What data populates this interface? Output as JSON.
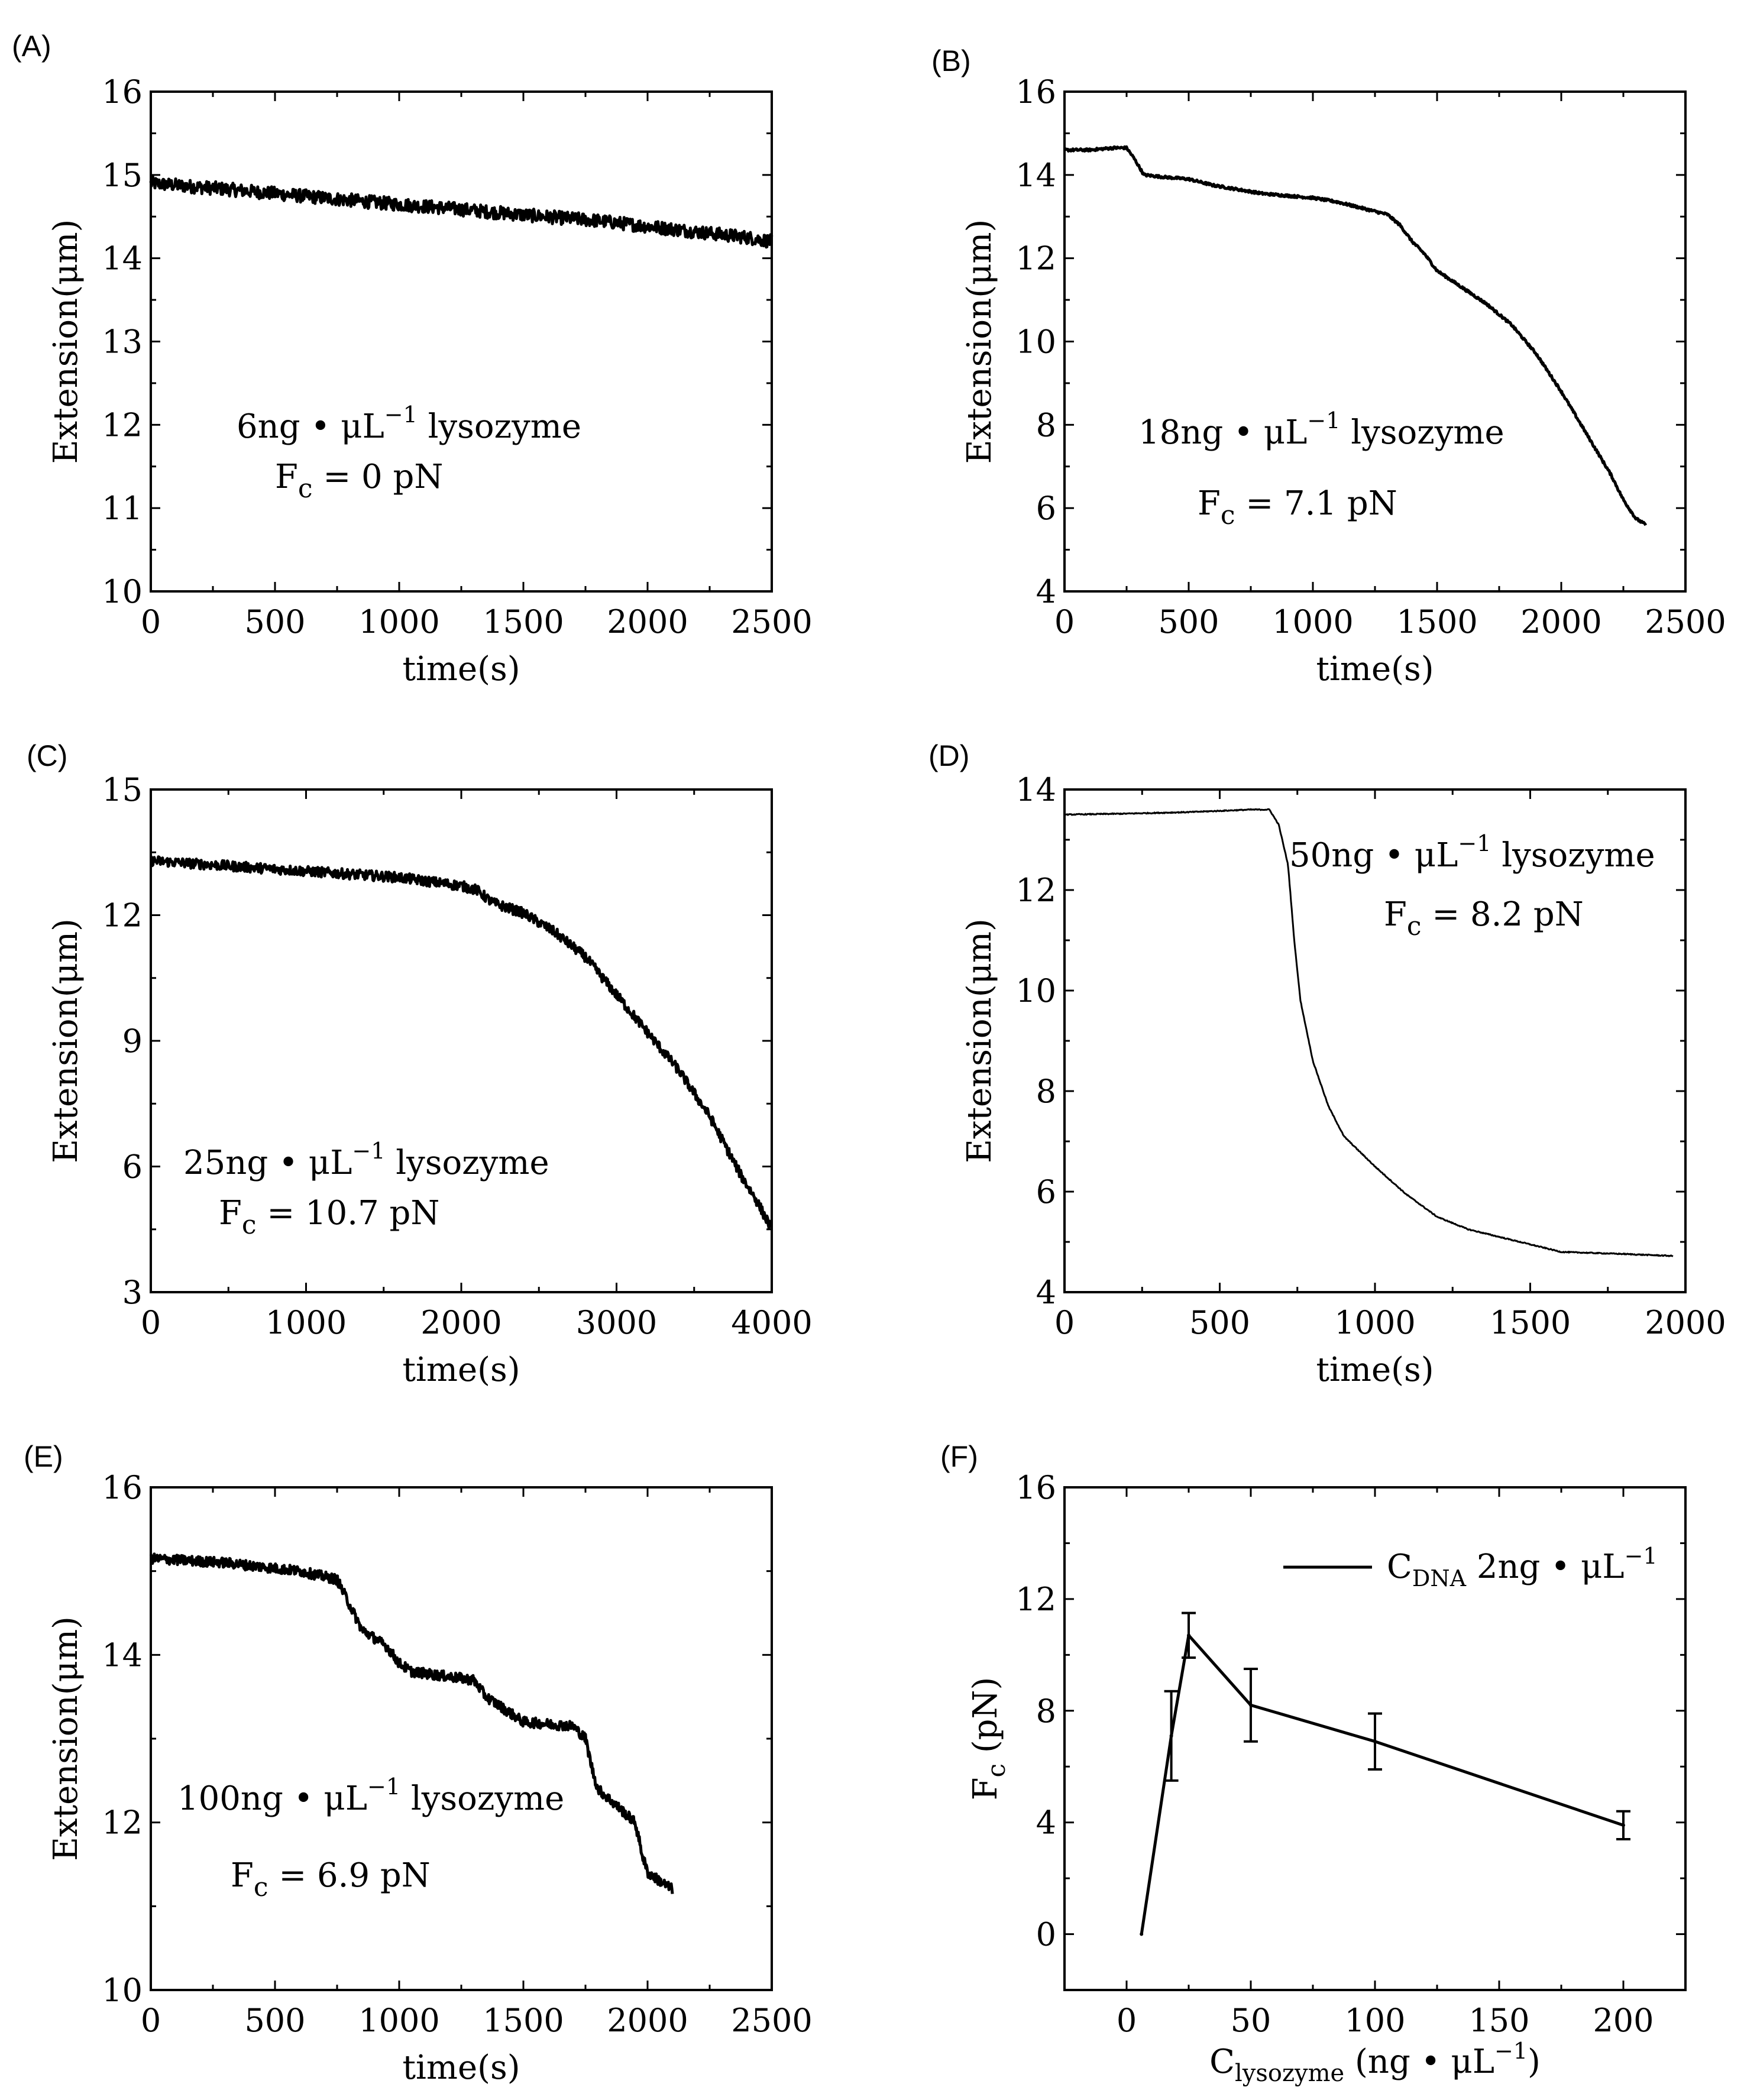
{
  "chart_data": [
    {
      "panel": "(A)",
      "type": "line",
      "title": "",
      "xlabel": "time(s)",
      "ylabel": "Extension(μm)",
      "xlim": [
        0,
        2500
      ],
      "ylim": [
        10,
        16
      ],
      "xticks": [
        0,
        500,
        1000,
        1500,
        2000,
        2500
      ],
      "yticks": [
        10,
        11,
        12,
        13,
        14,
        15,
        16
      ],
      "annotation_line1": "6ng • μL",
      "annotation_sup": "−1",
      "annotation_line1_tail": " lysozyme",
      "annotation_fc_main": "F",
      "annotation_fc_sub": "c",
      "annotation_fc_value": " = 0 pN",
      "noise": 0.08,
      "series": [
        {
          "name": "extension",
          "x": [
            0,
            300,
            600,
            900,
            1200,
            1500,
            1800,
            2100,
            2400,
            2500
          ],
          "y": [
            14.9,
            14.83,
            14.75,
            14.67,
            14.6,
            14.52,
            14.45,
            14.35,
            14.25,
            14.2
          ]
        }
      ]
    },
    {
      "panel": "(B)",
      "type": "line",
      "title": "",
      "xlabel": "time(s)",
      "ylabel": "Extension(μm)",
      "xlim": [
        0,
        2500
      ],
      "ylim": [
        4,
        16
      ],
      "xticks": [
        0,
        500,
        1000,
        1500,
        2000,
        2500
      ],
      "yticks": [
        4,
        6,
        8,
        10,
        12,
        14,
        16
      ],
      "annotation_line1": "18ng • μL",
      "annotation_sup": "−1",
      "annotation_line1_tail": " lysozyme",
      "annotation_fc_main": "F",
      "annotation_fc_sub": "c",
      "annotation_fc_value": " = 7.1 pN",
      "noise": 0.03,
      "series": [
        {
          "name": "extension",
          "x": [
            0,
            100,
            200,
            250,
            280,
            320,
            400,
            500,
            600,
            700,
            800,
            900,
            1000,
            1100,
            1200,
            1300,
            1350,
            1400,
            1450,
            1500,
            1550,
            1600,
            1700,
            1800,
            1900,
            2000,
            2100,
            2200,
            2250,
            2300,
            2340
          ],
          "y": [
            14.6,
            14.6,
            14.65,
            14.65,
            14.4,
            14.0,
            13.95,
            13.9,
            13.75,
            13.65,
            13.55,
            13.5,
            13.45,
            13.35,
            13.2,
            13.05,
            12.8,
            12.4,
            12.1,
            11.7,
            11.5,
            11.3,
            10.9,
            10.4,
            9.7,
            8.8,
            7.8,
            6.8,
            6.2,
            5.75,
            5.6
          ]
        }
      ]
    },
    {
      "panel": "(C)",
      "type": "line",
      "title": "",
      "xlabel": "time(s)",
      "ylabel": "Extension(μm)",
      "xlim": [
        0,
        4000
      ],
      "ylim": [
        3,
        15
      ],
      "xticks": [
        0,
        1000,
        2000,
        3000,
        4000
      ],
      "yticks": [
        3,
        6,
        9,
        12,
        15
      ],
      "annotation_line1": "25ng • μL",
      "annotation_sup": "−1",
      "annotation_line1_tail": " lysozyme",
      "annotation_fc_main": "F",
      "annotation_fc_sub": "c",
      "annotation_fc_value": " = 10.7 pN",
      "noise": 0.12,
      "series": [
        {
          "name": "extension",
          "x": [
            0,
            400,
            800,
            1200,
            1600,
            2000,
            2100,
            2200,
            2400,
            2600,
            2800,
            3000,
            3200,
            3400,
            3600,
            3800,
            3900,
            4000
          ],
          "y": [
            13.3,
            13.2,
            13.1,
            13.0,
            12.9,
            12.7,
            12.6,
            12.3,
            12.05,
            11.6,
            11.0,
            10.1,
            9.2,
            8.3,
            7.2,
            5.8,
            5.2,
            4.5
          ]
        }
      ]
    },
    {
      "panel": "(D)",
      "type": "line",
      "title": "",
      "xlabel": "time(s)",
      "ylabel": "Extension(μm)",
      "xlim": [
        0,
        2000
      ],
      "ylim": [
        4,
        14
      ],
      "xticks": [
        0,
        500,
        1000,
        1500,
        2000
      ],
      "yticks": [
        4,
        6,
        8,
        10,
        12,
        14
      ],
      "annotation_line1": "50ng • μL",
      "annotation_sup": "−1",
      "annotation_line1_tail": " lysozyme",
      "annotation_fc_main": "F",
      "annotation_fc_sub": "c",
      "annotation_fc_value": " = 8.2 pN",
      "noise": 0.01,
      "series": [
        {
          "name": "extension",
          "x": [
            0,
            200,
            400,
            600,
            660,
            690,
            720,
            740,
            760,
            800,
            850,
            900,
            1000,
            1100,
            1200,
            1300,
            1400,
            1500,
            1600,
            1700,
            1800,
            1960
          ],
          "y": [
            13.5,
            13.52,
            13.55,
            13.6,
            13.6,
            13.3,
            12.5,
            11.0,
            9.8,
            8.6,
            7.7,
            7.1,
            6.5,
            5.95,
            5.5,
            5.25,
            5.1,
            4.95,
            4.8,
            4.78,
            4.76,
            4.72
          ]
        }
      ]
    },
    {
      "panel": "(E)",
      "type": "line",
      "title": "",
      "xlabel": "time(s)",
      "ylabel": "Extension(μm)",
      "xlim": [
        0,
        2500
      ],
      "ylim": [
        10,
        16
      ],
      "xticks": [
        0,
        500,
        1000,
        1500,
        2000,
        2500
      ],
      "yticks": [
        10,
        12,
        14,
        16
      ],
      "annotation_line1": "100ng • μL",
      "annotation_sup": "−1",
      "annotation_line1_tail": " lysozyme",
      "annotation_fc_main": "F",
      "annotation_fc_sub": "c",
      "annotation_fc_value": " = 6.9 pN",
      "noise": 0.06,
      "series": [
        {
          "name": "extension",
          "x": [
            0,
            300,
            600,
            750,
            800,
            850,
            950,
            1000,
            1050,
            1300,
            1350,
            1500,
            1700,
            1750,
            1780,
            1800,
            1950,
            1980,
            2000,
            2100
          ],
          "y": [
            15.15,
            15.1,
            15.0,
            14.9,
            14.6,
            14.3,
            14.1,
            13.9,
            13.8,
            13.7,
            13.5,
            13.2,
            13.15,
            13.0,
            12.6,
            12.4,
            12.0,
            11.6,
            11.4,
            11.2
          ]
        }
      ]
    },
    {
      "panel": "(F)",
      "type": "line",
      "title": "",
      "ylabel": "F",
      "ylabel_sub": "c",
      "ylabel_tail": " (pN)",
      "xlabel_main": "C",
      "xlabel_sub": "lysozyme",
      "xlabel_tail": " (ng • μL",
      "xlabel_sup": "−1",
      "xlabel_close": ")",
      "xlim": [
        -25,
        225
      ],
      "ylim": [
        -2,
        16
      ],
      "xticks": [
        0,
        50,
        100,
        150,
        200
      ],
      "yticks": [
        0,
        4,
        8,
        12,
        16
      ],
      "legend_main": "C",
      "legend_sub": "DNA",
      "legend_tail": " 2ng • μL",
      "legend_sup": "−1",
      "series": [
        {
          "name": "C_DNA 2ng • μL−1",
          "x": [
            6,
            18,
            25,
            50,
            100,
            200
          ],
          "y": [
            0,
            7.1,
            10.7,
            8.2,
            6.9,
            3.9
          ],
          "err": [
            0,
            1.6,
            0.8,
            1.3,
            1.0,
            0.5
          ]
        }
      ]
    }
  ]
}
